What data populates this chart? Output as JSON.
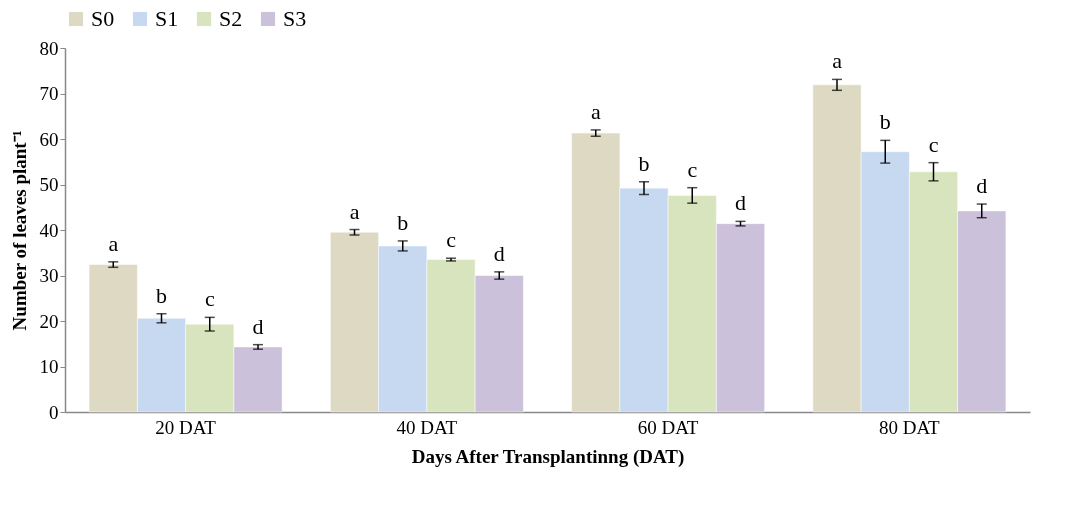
{
  "chart_data": {
    "type": "bar",
    "xlabel": "Days After Transplantinng (DAT)",
    "ylabel": "Number of leaves plant⁻¹",
    "categories": [
      "20 DAT",
      "40 DAT",
      "60 DAT",
      "80 DAT"
    ],
    "series": [
      {
        "name": "S0",
        "color": "#ddd9c3",
        "values": [
          32.4,
          39.5,
          61.3,
          71.9
        ],
        "errors": [
          0.6,
          0.6,
          0.7,
          1.2
        ],
        "value_labels": [
          "a",
          "a",
          "a",
          "a"
        ]
      },
      {
        "name": "S1",
        "color": "#c6d9f1",
        "values": [
          20.6,
          36.5,
          49.2,
          57.2
        ],
        "errors": [
          1.0,
          1.1,
          1.4,
          2.5
        ],
        "value_labels": [
          "b",
          "b",
          "b",
          "b"
        ]
      },
      {
        "name": "S2",
        "color": "#d7e4bd",
        "values": [
          19.3,
          33.5,
          47.6,
          52.8
        ],
        "errors": [
          1.5,
          0.3,
          1.7,
          2.0
        ],
        "value_labels": [
          "c",
          "c",
          "c",
          "c"
        ]
      },
      {
        "name": "S3",
        "color": "#ccc1da",
        "values": [
          14.3,
          30.0,
          41.4,
          44.2
        ],
        "errors": [
          0.5,
          0.8,
          0.5,
          1.5
        ],
        "value_labels": [
          "d",
          "d",
          "d",
          "d"
        ]
      }
    ],
    "ylim": [
      0,
      80
    ],
    "yticks": [
      0,
      10,
      20,
      30,
      40,
      50,
      60,
      70,
      80
    ],
    "grid": false,
    "legend": "top"
  }
}
